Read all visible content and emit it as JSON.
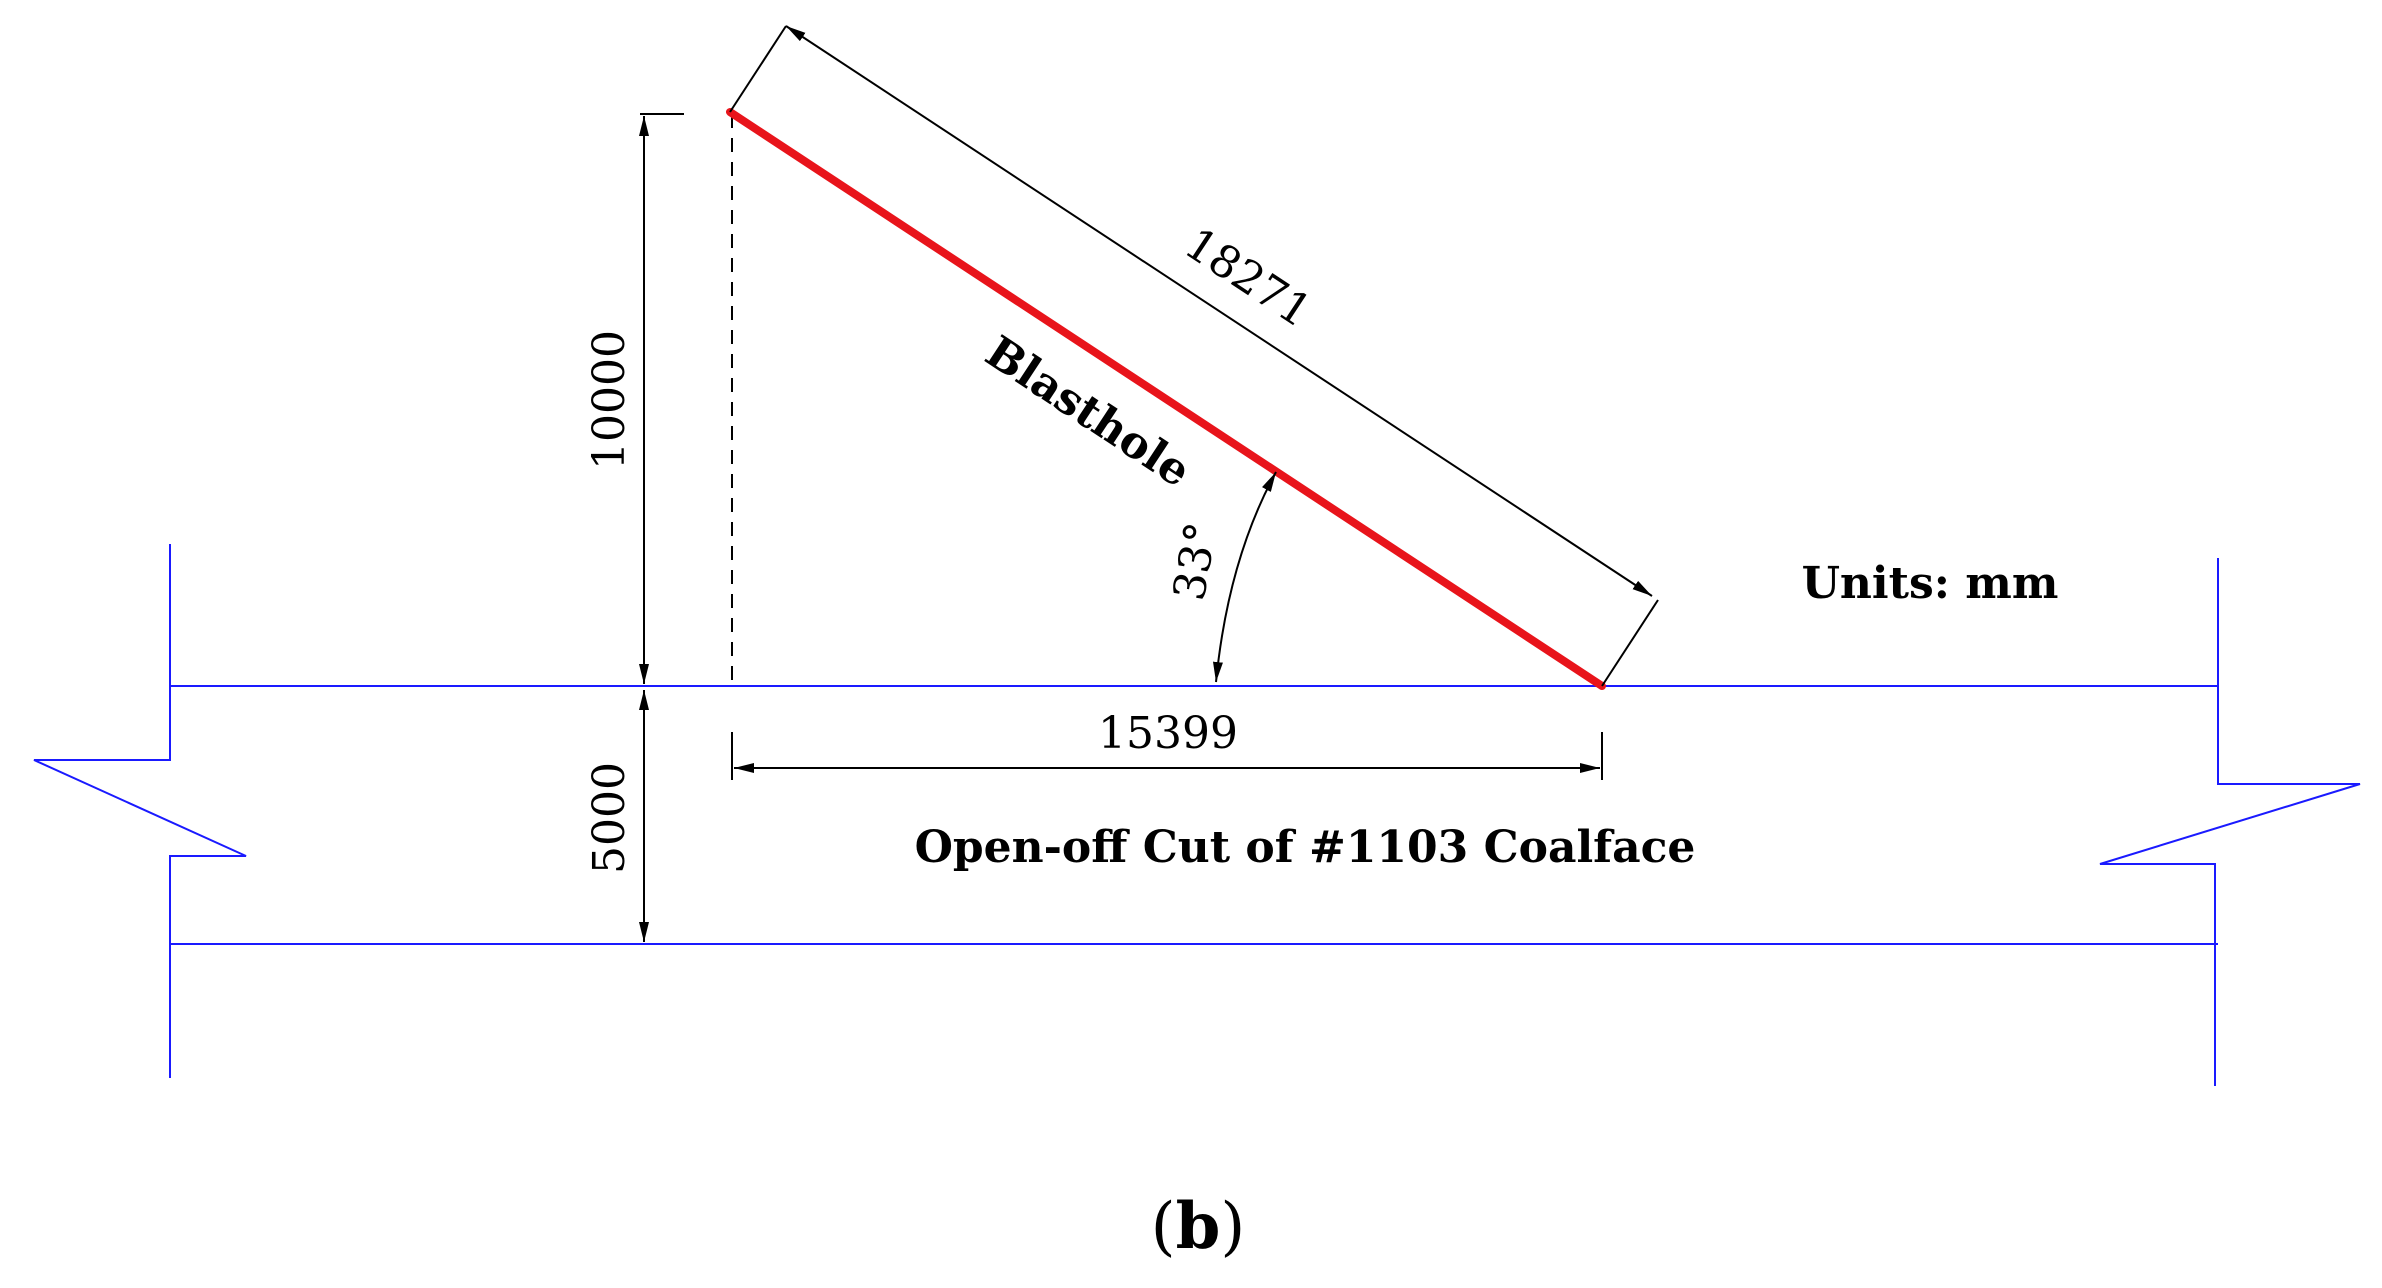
{
  "diagram": {
    "blasthole_label": "Blasthole",
    "blasthole_length": "18271",
    "vertical_height": "10000",
    "horizontal_length": "15399",
    "cut_width": "5000",
    "angle": "33°",
    "units": "Units: mm",
    "cut_label": "Open-off Cut of #1103 Coalface",
    "caption_open": "(",
    "caption_letter": "b",
    "caption_close": ")"
  },
  "colors": {
    "blasthole": "#e8141b",
    "roadway": "#1a1aff",
    "dimension": "#000000"
  }
}
